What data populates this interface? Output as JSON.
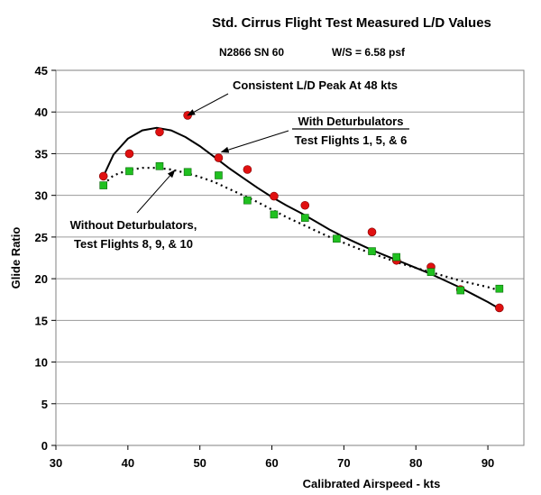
{
  "chart_data": {
    "type": "scatter",
    "title": "Std. Cirrus Flight Test Measured L/D Values",
    "subtitle_left": "N2866 SN 60",
    "subtitle_right": "W/S =  6.58 psf",
    "xlabel": "Calibrated Airspeed - kts",
    "ylabel": "Glide Ratio",
    "xlim": [
      30,
      95
    ],
    "ylim": [
      0,
      45
    ],
    "xticks": [
      30,
      40,
      50,
      60,
      70,
      80,
      90
    ],
    "yticks": [
      0,
      5,
      10,
      15,
      20,
      25,
      30,
      35,
      40,
      45
    ],
    "grid": true,
    "series": [
      {
        "marker": "circle",
        "color": "#e01010",
        "points": [
          [
            36.6,
            32.3
          ],
          [
            40.2,
            35.0
          ],
          [
            44.4,
            37.6
          ],
          [
            48.3,
            39.6
          ],
          [
            52.6,
            34.5
          ],
          [
            56.6,
            33.1
          ],
          [
            60.3,
            29.9
          ],
          [
            64.6,
            28.8
          ],
          [
            73.9,
            25.6
          ],
          [
            77.3,
            22.2
          ],
          [
            82.1,
            21.4
          ],
          [
            86.2,
            18.7
          ],
          [
            91.6,
            16.5
          ]
        ],
        "fit": [
          [
            36.6,
            32.3
          ],
          [
            38,
            34.9
          ],
          [
            40,
            36.8
          ],
          [
            42,
            37.8
          ],
          [
            44,
            38.1
          ],
          [
            46,
            37.8
          ],
          [
            48,
            37.0
          ],
          [
            50,
            35.9
          ],
          [
            52,
            34.6
          ],
          [
            54,
            33.3
          ],
          [
            56,
            32.1
          ],
          [
            58,
            30.9
          ],
          [
            60,
            29.8
          ],
          [
            62,
            28.8
          ],
          [
            64,
            27.9
          ],
          [
            66,
            26.9
          ],
          [
            68,
            25.9
          ],
          [
            70,
            25.0
          ],
          [
            72,
            24.2
          ],
          [
            74,
            23.4
          ],
          [
            76,
            22.7
          ],
          [
            78,
            22.0
          ],
          [
            80,
            21.3
          ],
          [
            82,
            20.6
          ],
          [
            84,
            19.8
          ],
          [
            86,
            19.0
          ],
          [
            88,
            18.1
          ],
          [
            90,
            17.2
          ],
          [
            91.6,
            16.4
          ]
        ]
      },
      {
        "marker": "square",
        "color": "#20c020",
        "points": [
          [
            36.6,
            31.2
          ],
          [
            40.2,
            32.9
          ],
          [
            44.4,
            33.5
          ],
          [
            48.3,
            32.8
          ],
          [
            52.6,
            32.4
          ],
          [
            56.6,
            29.4
          ],
          [
            60.3,
            27.7
          ],
          [
            64.6,
            27.3
          ],
          [
            69.0,
            24.8
          ],
          [
            73.9,
            23.3
          ],
          [
            77.3,
            22.6
          ],
          [
            82.1,
            20.8
          ],
          [
            86.2,
            18.6
          ],
          [
            91.6,
            18.8
          ]
        ],
        "fit": [
          [
            36.6,
            31.3
          ],
          [
            38,
            32.4
          ],
          [
            40,
            33.0
          ],
          [
            42,
            33.3
          ],
          [
            44,
            33.3
          ],
          [
            46,
            33.1
          ],
          [
            48,
            32.7
          ],
          [
            50,
            32.2
          ],
          [
            52,
            31.6
          ],
          [
            54,
            30.8
          ],
          [
            56,
            30.0
          ],
          [
            58,
            29.2
          ],
          [
            60,
            28.3
          ],
          [
            62,
            27.4
          ],
          [
            64,
            26.6
          ],
          [
            66,
            25.8
          ],
          [
            68,
            25.0
          ],
          [
            70,
            24.3
          ],
          [
            72,
            23.6
          ],
          [
            74,
            23.0
          ],
          [
            76,
            22.4
          ],
          [
            78,
            21.8
          ],
          [
            80,
            21.3
          ],
          [
            82,
            20.8
          ],
          [
            84,
            20.3
          ],
          [
            86,
            19.8
          ],
          [
            88,
            19.4
          ],
          [
            90,
            19.0
          ],
          [
            91.6,
            18.6
          ]
        ]
      }
    ],
    "annotations": [
      {
        "lines": [
          "Consistent L/D Peak At 48 kts"
        ],
        "arrow_to": [
          48.3,
          39.6
        ]
      },
      {
        "lines": [
          "With Deturbulators",
          "Test Flights 1, 5, & 6"
        ],
        "arrow_to": [
          53,
          35.2
        ]
      },
      {
        "lines": [
          "Without  Deturbulators,",
          "Test Flights 8, 9, & 10"
        ],
        "arrow_to": [
          46.5,
          33.0
        ]
      }
    ]
  }
}
